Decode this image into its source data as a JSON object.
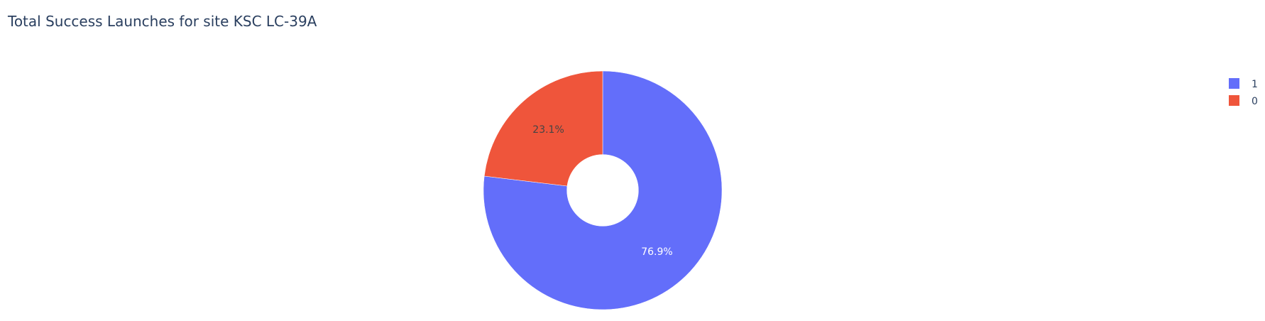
{
  "chart_data": {
    "type": "pie",
    "title": "Total Success Launches for site KSC LC-39A",
    "hole": 0.3,
    "slices": [
      {
        "label": "1",
        "value": 76.9,
        "text": "76.9%",
        "color": "#636efa",
        "text_color": "#ffffff"
      },
      {
        "label": "0",
        "value": 23.1,
        "text": "23.1%",
        "color": "#ef553b",
        "text_color": "#444444"
      }
    ],
    "legend": {
      "placement": "top-right",
      "entries": [
        "1",
        "0"
      ]
    }
  }
}
